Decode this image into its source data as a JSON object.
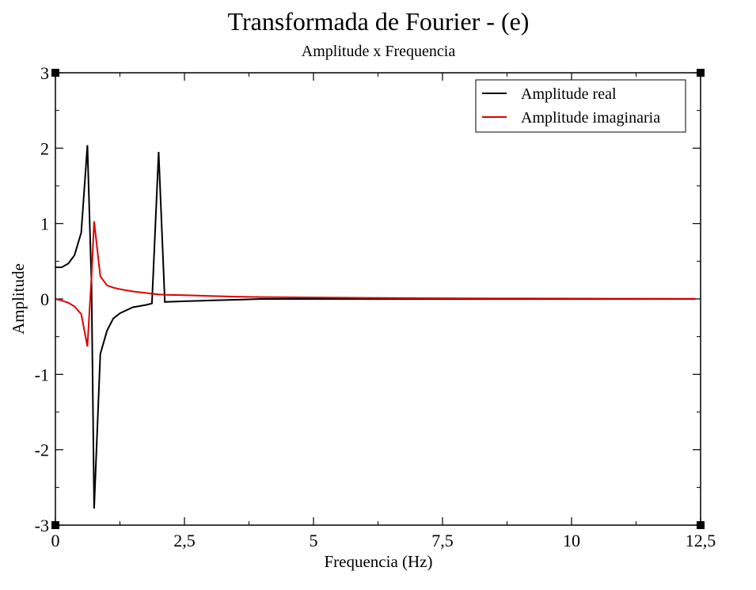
{
  "chart_data": {
    "type": "line",
    "title": "Transformada de Fourier - (e)",
    "subtitle": "Amplitude x Frequencia",
    "xlabel": "Frequencia (Hz)",
    "ylabel": "Amplitude",
    "xlim": [
      0,
      12.5
    ],
    "ylim": [
      -3,
      3
    ],
    "xticks": [
      0,
      2.5,
      5,
      7.5,
      10,
      12.5
    ],
    "xtick_labels": [
      "0",
      "2,5",
      "5",
      "7,5",
      "10",
      "12,5"
    ],
    "yticks": [
      -3,
      -2,
      -1,
      0,
      1,
      2,
      3
    ],
    "ytick_labels": [
      "-3",
      "-2",
      "-1",
      "0",
      "1",
      "2",
      "3"
    ],
    "grid": false,
    "legend_position": "top-right",
    "series": [
      {
        "name": "Amplitude real",
        "color": "#000000",
        "x": [
          0,
          0.12,
          0.25,
          0.37,
          0.5,
          0.62,
          0.7,
          0.75,
          0.87,
          1.0,
          1.12,
          1.25,
          1.5,
          1.75,
          1.87,
          2.0,
          2.12,
          2.5,
          3.0,
          3.5,
          4.0,
          5.0,
          6.0,
          7.0,
          8.0,
          9.0,
          10.0,
          11.0,
          12.0,
          12.4
        ],
        "y": [
          0.42,
          0.42,
          0.47,
          0.58,
          0.88,
          2.04,
          0.18,
          -2.78,
          -0.73,
          -0.42,
          -0.26,
          -0.19,
          -0.11,
          -0.08,
          -0.06,
          1.95,
          -0.04,
          -0.03,
          -0.02,
          -0.01,
          0.0,
          0.0,
          0.0,
          0.0,
          0.0,
          0.0,
          0.0,
          0.0,
          0.0,
          0.0
        ]
      },
      {
        "name": "Amplitude imaginaria",
        "color": "#e00000",
        "x": [
          0,
          0.12,
          0.25,
          0.37,
          0.5,
          0.62,
          0.7,
          0.75,
          0.87,
          1.0,
          1.12,
          1.25,
          1.5,
          1.75,
          1.87,
          2.0,
          2.12,
          2.5,
          3.0,
          3.5,
          4.0,
          5.0,
          6.0,
          7.0,
          8.0,
          9.0,
          10.0,
          11.0,
          12.0,
          12.4
        ],
        "y": [
          0.0,
          -0.02,
          -0.05,
          -0.1,
          -0.2,
          -0.63,
          0.3,
          1.03,
          0.3,
          0.18,
          0.15,
          0.13,
          0.1,
          0.08,
          0.07,
          0.06,
          0.055,
          0.05,
          0.04,
          0.03,
          0.025,
          0.02,
          0.015,
          0.01,
          0.008,
          0.006,
          0.005,
          0.004,
          0.003,
          0.003
        ]
      }
    ]
  }
}
